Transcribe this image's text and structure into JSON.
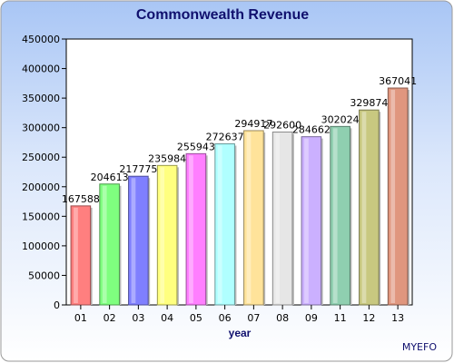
{
  "chart_data": {
    "type": "bar",
    "title": "Commonwealth Revenue",
    "xlabel": "year",
    "ylabel": "",
    "categories": [
      "01",
      "02",
      "03",
      "04",
      "05",
      "06",
      "07",
      "08",
      "09",
      "11",
      "12",
      "13"
    ],
    "values": [
      167588,
      204613,
      217775,
      235984,
      255943,
      272637,
      294917,
      292600,
      284662,
      302024,
      329874,
      367041
    ],
    "data_labels": [
      "167588",
      "204613",
      "217775",
      "235984",
      "255943",
      "272637",
      "294917",
      "292600",
      "284662",
      "302024",
      "329874",
      "367041"
    ],
    "ylim": [
      0,
      450000
    ],
    "yticks": [
      0,
      50000,
      100000,
      150000,
      200000,
      250000,
      300000,
      350000,
      400000,
      450000
    ],
    "grid": false,
    "colors": [
      "#ff7f7f",
      "#7fff7f",
      "#7f7fff",
      "#ffff7f",
      "#ff7fff",
      "#b0ffff",
      "#ffe39a",
      "#e6e6e6",
      "#cbb0ff",
      "#8fcfb0",
      "#c8c880",
      "#e0967e"
    ]
  },
  "footer": {
    "text": "MYEFO"
  }
}
